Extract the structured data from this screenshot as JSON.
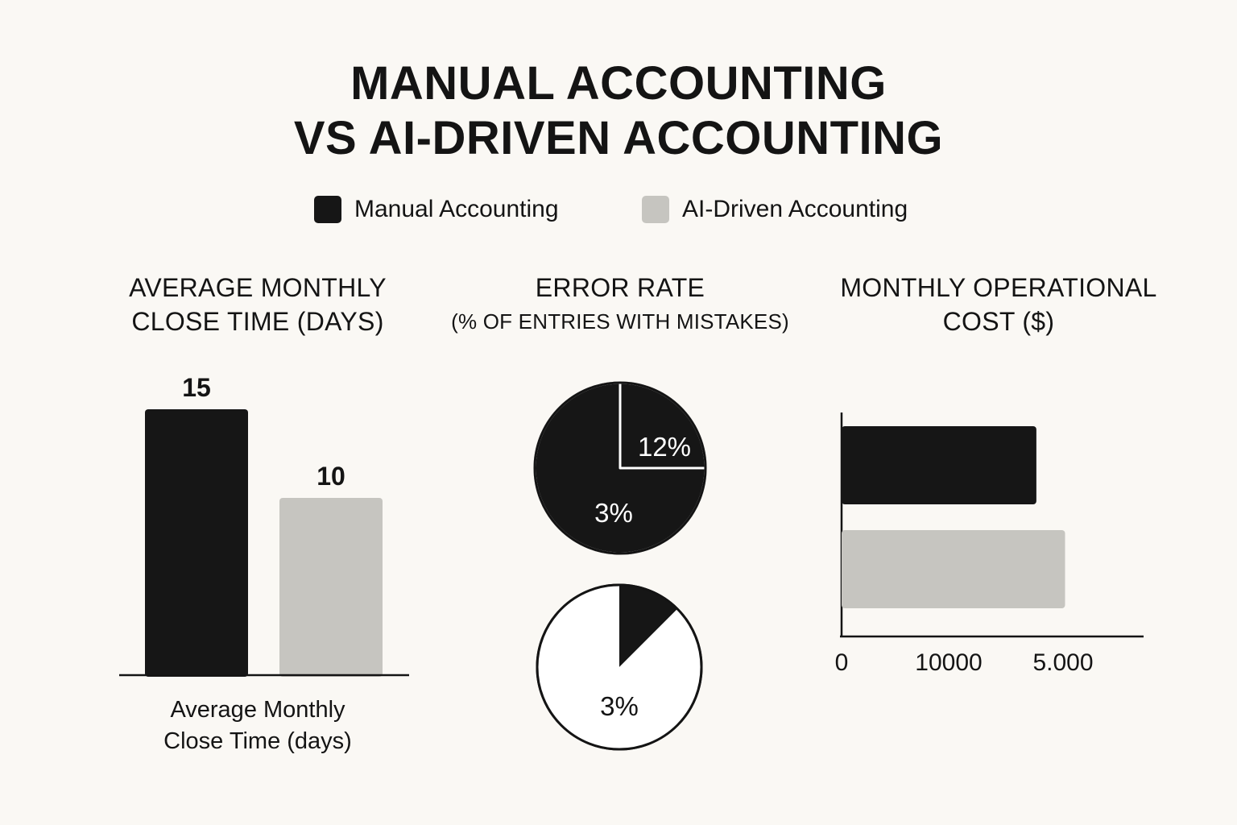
{
  "title": {
    "line1": "MANUAL ACCOUNTING",
    "line2": "VS AI-DRIVEN ACCOUNTING"
  },
  "legend": [
    {
      "label": "Manual Accounting",
      "color": "#161616"
    },
    {
      "label": "AI-Driven Accounting",
      "color": "#c6c5c0"
    }
  ],
  "chart_data": [
    {
      "type": "bar",
      "title_line1": "AVERAGE MONTHLY",
      "title_line2": "CLOSE TIME (DAYS)",
      "categories": [
        "Manual Accounting",
        "AI-Driven Accounting"
      ],
      "values": [
        15,
        10
      ],
      "data_labels": [
        "15",
        "10"
      ],
      "caption_line1": "Average Monthly",
      "caption_line2": "Close Time (days)",
      "colors": [
        "#161616",
        "#c6c5c0"
      ]
    },
    {
      "type": "pie",
      "title": "ERROR RATE",
      "subtitle": "(% OF ENTRIES WITH MISTAKES)",
      "pies": [
        {
          "slices": [
            {
              "label": "3%",
              "value": 75,
              "color": "#161616"
            },
            {
              "label": "12%",
              "value": 25,
              "color": "#161616"
            }
          ]
        },
        {
          "slices": [
            {
              "label": "",
              "value": 12.5,
              "color": "#161616"
            },
            {
              "label": "3%",
              "value": 87.5,
              "color": "#ffffff"
            }
          ]
        }
      ]
    },
    {
      "type": "bar",
      "orientation": "horizontal",
      "title_line1": "MONTHLY OPERATIONAL",
      "title_line2": "COST ($)",
      "categories": [
        "Manual Accounting",
        "AI-Driven Accounting"
      ],
      "values": [
        0.645,
        0.74
      ],
      "value_unit": "fraction of axis length",
      "x_tick_labels": [
        "0",
        "10000",
        "5.000"
      ],
      "colors": [
        "#161616",
        "#c6c5c0"
      ]
    }
  ]
}
